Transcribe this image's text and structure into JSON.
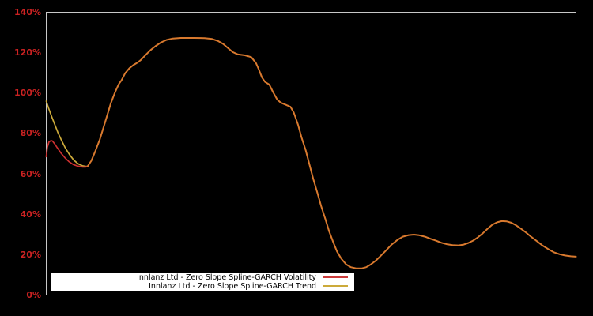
{
  "window": {
    "background": "#000000"
  },
  "y_axis": {
    "labels": [
      "140%",
      "120%",
      "100%",
      "80%",
      "60%",
      "40%",
      "20%",
      "0%"
    ],
    "min": 0,
    "max": 140,
    "step": 20,
    "color": "#cc2222"
  },
  "legend": {
    "background": "#ffffff",
    "text_color": "#000000",
    "items": [
      {
        "label": "Innlanz Ltd - Zero Slope Spline-GARCH Volatility",
        "color": "#cc3b3b"
      },
      {
        "label": "Innlanz Ltd - Zero Slope Spline-GARCH Trend",
        "color": "#ccaa3a"
      }
    ]
  },
  "chart_data": {
    "type": "line",
    "title": "",
    "xlabel": "",
    "ylabel": "",
    "ylim": [
      0,
      140
    ],
    "y_tick_labels": [
      "0%",
      "20%",
      "40%",
      "60%",
      "80%",
      "100%",
      "120%",
      "140%"
    ],
    "x_tick_labels": [],
    "grid": false,
    "plot_border_color": "#c8c8c8",
    "legend_position": "inside-bottom-left",
    "note": "No x tick labels are visible; x values are percent of plot width (0-100). Both series coincide from x=7.8 onward; the overlapping section renders orange (merged_points). Values are percent volatility.",
    "series": [
      {
        "name": "Innlanz Ltd - Zero Slope Spline-GARCH Volatility",
        "color": "#cc3030",
        "points_head": [
          [
            0,
            68.5
          ],
          [
            0.2,
            73
          ],
          [
            0.5,
            75.8
          ],
          [
            0.9,
            76.5
          ],
          [
            1.2,
            76.2
          ],
          [
            1.6,
            74.8
          ],
          [
            2.1,
            72.8
          ],
          [
            2.8,
            70.2
          ],
          [
            3.5,
            68.0
          ],
          [
            4.3,
            66.0
          ],
          [
            5.1,
            64.6
          ],
          [
            6.0,
            63.8
          ],
          [
            6.9,
            63.4
          ],
          [
            7.4,
            63.4
          ],
          [
            7.8,
            63.7
          ]
        ],
        "continues_as": "merged_points"
      },
      {
        "name": "Innlanz Ltd - Zero Slope Spline-GARCH Trend",
        "color": "#ccaa3a",
        "points_head": [
          [
            0,
            96
          ],
          [
            0.45,
            92.5
          ],
          [
            1.0,
            88.5
          ],
          [
            1.6,
            84.5
          ],
          [
            2.2,
            80.5
          ],
          [
            2.9,
            76.5
          ],
          [
            3.6,
            72.8
          ],
          [
            4.4,
            69.5
          ],
          [
            5.2,
            66.8
          ],
          [
            6.0,
            65.0
          ],
          [
            6.8,
            64.0
          ],
          [
            7.4,
            63.7
          ],
          [
            7.8,
            63.7
          ]
        ],
        "continues_as": "merged_points"
      }
    ],
    "merged_color": "#d8792e",
    "merged_points": [
      [
        7.8,
        63.7
      ],
      [
        8.5,
        66.5
      ],
      [
        9.3,
        71.5
      ],
      [
        10.1,
        77
      ],
      [
        10.8,
        83
      ],
      [
        11.5,
        89
      ],
      [
        12.2,
        95
      ],
      [
        13.0,
        100.5
      ],
      [
        13.7,
        104.5
      ],
      [
        14.2,
        106.3
      ],
      [
        14.9,
        109.8
      ],
      [
        15.7,
        112.3
      ],
      [
        16.4,
        113.8
      ],
      [
        17.3,
        115.2
      ],
      [
        17.9,
        116.5
      ],
      [
        18.8,
        119
      ],
      [
        19.7,
        121.3
      ],
      [
        20.6,
        123.2
      ],
      [
        21.6,
        125
      ],
      [
        22.7,
        126.3
      ],
      [
        23.9,
        127
      ],
      [
        25.4,
        127.3
      ],
      [
        27.9,
        127.3
      ],
      [
        29.9,
        127.2
      ],
      [
        31.3,
        126.8
      ],
      [
        32.4,
        125.8
      ],
      [
        33.4,
        124.3
      ],
      [
        34.3,
        122.3
      ],
      [
        35.2,
        120.3
      ],
      [
        36.1,
        119.2
      ],
      [
        37.5,
        118.7
      ],
      [
        38.7,
        117.8
      ],
      [
        39.6,
        114.8
      ],
      [
        40.1,
        111.8
      ],
      [
        40.7,
        107.8
      ],
      [
        41.3,
        105.5
      ],
      [
        42.1,
        104.2
      ],
      [
        42.8,
        100.5
      ],
      [
        43.6,
        96.8
      ],
      [
        44.3,
        95.2
      ],
      [
        45.2,
        94.2
      ],
      [
        46.1,
        93.2
      ],
      [
        46.7,
        90.5
      ],
      [
        47.5,
        84.5
      ],
      [
        48.2,
        78
      ],
      [
        49.0,
        71.5
      ],
      [
        49.7,
        64.5
      ],
      [
        50.4,
        57.5
      ],
      [
        51.2,
        50.5
      ],
      [
        51.9,
        44
      ],
      [
        52.7,
        37.5
      ],
      [
        53.4,
        31.5
      ],
      [
        54.2,
        26
      ],
      [
        54.9,
        21.5
      ],
      [
        55.7,
        18
      ],
      [
        56.6,
        15.2
      ],
      [
        57.5,
        13.8
      ],
      [
        58.5,
        13.2
      ],
      [
        59.6,
        13.2
      ],
      [
        60.4,
        13.8
      ],
      [
        61.3,
        15.2
      ],
      [
        62.2,
        17
      ],
      [
        63.1,
        19.3
      ],
      [
        64.2,
        22.2
      ],
      [
        65.2,
        25
      ],
      [
        66.3,
        27.3
      ],
      [
        67.3,
        28.9
      ],
      [
        68.4,
        29.7
      ],
      [
        69.4,
        29.9
      ],
      [
        70.4,
        29.6
      ],
      [
        71.5,
        28.9
      ],
      [
        72.5,
        27.9
      ],
      [
        73.6,
        26.9
      ],
      [
        74.6,
        25.9
      ],
      [
        75.7,
        25.1
      ],
      [
        76.7,
        24.7
      ],
      [
        77.8,
        24.6
      ],
      [
        78.8,
        25
      ],
      [
        79.7,
        25.8
      ],
      [
        80.6,
        27
      ],
      [
        81.5,
        28.6
      ],
      [
        82.4,
        30.6
      ],
      [
        83.3,
        32.8
      ],
      [
        84.2,
        34.8
      ],
      [
        85.1,
        36
      ],
      [
        86.0,
        36.6
      ],
      [
        86.9,
        36.5
      ],
      [
        87.8,
        35.8
      ],
      [
        88.7,
        34.5
      ],
      [
        89.6,
        32.9
      ],
      [
        90.6,
        30.9
      ],
      [
        91.6,
        28.7
      ],
      [
        92.7,
        26.5
      ],
      [
        93.7,
        24.5
      ],
      [
        94.8,
        22.7
      ],
      [
        95.8,
        21.2
      ],
      [
        96.9,
        20.2
      ],
      [
        97.9,
        19.6
      ],
      [
        99.0,
        19.2
      ],
      [
        100,
        19.0
      ]
    ]
  }
}
